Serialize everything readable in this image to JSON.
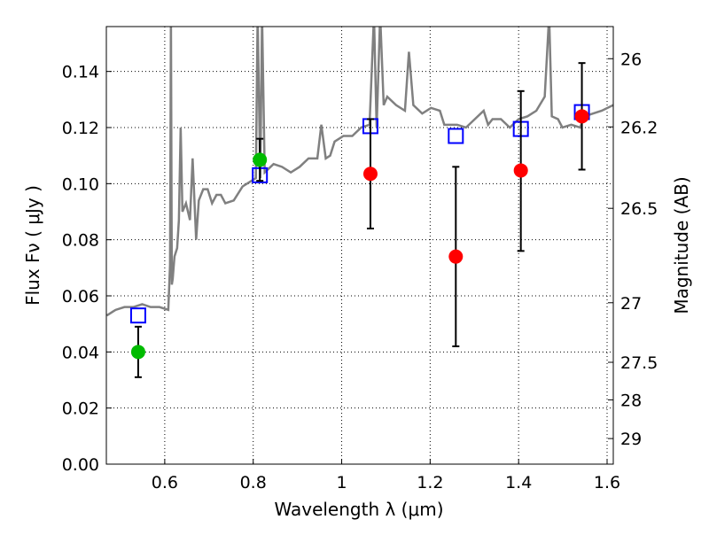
{
  "chart_data": {
    "type": "scatter",
    "xlabel": "Wavelength  λ (μm)",
    "ylabel": "Flux  Fν  ( μJy )",
    "ylabel_right": "Magnitude (AB)",
    "xlim": [
      0.468,
      1.614
    ],
    "ylim": [
      0,
      0.156
    ],
    "grid": true,
    "x_ticks": [
      {
        "v": 0.6,
        "label": "0.6"
      },
      {
        "v": 0.8,
        "label": "0.8"
      },
      {
        "v": 1.0,
        "label": "1"
      },
      {
        "v": 1.2,
        "label": "1.2"
      },
      {
        "v": 1.4,
        "label": "1.4"
      },
      {
        "v": 1.6,
        "label": "1.6"
      }
    ],
    "y_ticks": [
      {
        "v": 0,
        "label": "0.00"
      },
      {
        "v": 0.02,
        "label": "0.02"
      },
      {
        "v": 0.04,
        "label": "0.04"
      },
      {
        "v": 0.06,
        "label": "0.06"
      },
      {
        "v": 0.08,
        "label": "0.08"
      },
      {
        "v": 0.1,
        "label": "0.10"
      },
      {
        "v": 0.12,
        "label": "0.12"
      },
      {
        "v": 0.14,
        "label": "0.14"
      }
    ],
    "right_ticks": [
      {
        "mag": 26,
        "label": "26"
      },
      {
        "mag": 26.2,
        "label": "26.2"
      },
      {
        "mag": 26.5,
        "label": "26.5"
      },
      {
        "mag": 27,
        "label": "27"
      },
      {
        "mag": 27.5,
        "label": "27.5"
      },
      {
        "mag": 28,
        "label": "28"
      },
      {
        "mag": 29,
        "label": "29"
      }
    ],
    "colors": {
      "spectrum": "#808080",
      "model": "#0000ff",
      "green": "#00bb00",
      "red": "#ff0000"
    },
    "spectrum": [
      [
        0.469,
        0.053
      ],
      [
        0.489,
        0.055
      ],
      [
        0.509,
        0.056
      ],
      [
        0.529,
        0.056
      ],
      [
        0.549,
        0.057
      ],
      [
        0.568,
        0.056
      ],
      [
        0.588,
        0.056
      ],
      [
        0.608,
        0.055
      ],
      [
        0.612,
        0.071
      ],
      [
        0.614,
        0.16
      ],
      [
        0.616,
        0.064
      ],
      [
        0.618,
        0.066
      ],
      [
        0.622,
        0.074
      ],
      [
        0.628,
        0.077
      ],
      [
        0.632,
        0.087
      ],
      [
        0.636,
        0.12
      ],
      [
        0.64,
        0.09
      ],
      [
        0.648,
        0.093
      ],
      [
        0.657,
        0.087
      ],
      [
        0.663,
        0.109
      ],
      [
        0.671,
        0.08
      ],
      [
        0.677,
        0.094
      ],
      [
        0.687,
        0.098
      ],
      [
        0.697,
        0.098
      ],
      [
        0.707,
        0.093
      ],
      [
        0.717,
        0.096
      ],
      [
        0.727,
        0.096
      ],
      [
        0.737,
        0.093
      ],
      [
        0.756,
        0.094
      ],
      [
        0.776,
        0.099
      ],
      [
        0.796,
        0.101
      ],
      [
        0.806,
        0.102
      ],
      [
        0.81,
        0.16
      ],
      [
        0.816,
        0.102
      ],
      [
        0.82,
        0.16
      ],
      [
        0.826,
        0.104
      ],
      [
        0.846,
        0.107
      ],
      [
        0.865,
        0.106
      ],
      [
        0.885,
        0.104
      ],
      [
        0.905,
        0.106
      ],
      [
        0.925,
        0.109
      ],
      [
        0.945,
        0.109
      ],
      [
        0.954,
        0.121
      ],
      [
        0.964,
        0.109
      ],
      [
        0.974,
        0.11
      ],
      [
        0.984,
        0.115
      ],
      [
        1.004,
        0.117
      ],
      [
        1.024,
        0.117
      ],
      [
        1.044,
        0.12
      ],
      [
        1.063,
        0.121
      ],
      [
        1.073,
        0.16
      ],
      [
        1.079,
        0.12
      ],
      [
        1.087,
        0.16
      ],
      [
        1.095,
        0.128
      ],
      [
        1.103,
        0.131
      ],
      [
        1.123,
        0.128
      ],
      [
        1.143,
        0.126
      ],
      [
        1.152,
        0.147
      ],
      [
        1.162,
        0.128
      ],
      [
        1.182,
        0.125
      ],
      [
        1.202,
        0.127
      ],
      [
        1.222,
        0.126
      ],
      [
        1.232,
        0.121
      ],
      [
        1.242,
        0.121
      ],
      [
        1.261,
        0.121
      ],
      [
        1.281,
        0.12
      ],
      [
        1.301,
        0.123
      ],
      [
        1.321,
        0.126
      ],
      [
        1.331,
        0.121
      ],
      [
        1.341,
        0.123
      ],
      [
        1.36,
        0.123
      ],
      [
        1.38,
        0.12
      ],
      [
        1.4,
        0.123
      ],
      [
        1.42,
        0.124
      ],
      [
        1.44,
        0.126
      ],
      [
        1.459,
        0.131
      ],
      [
        1.469,
        0.16
      ],
      [
        1.475,
        0.124
      ],
      [
        1.489,
        0.123
      ],
      [
        1.499,
        0.12
      ],
      [
        1.519,
        0.121
      ],
      [
        1.539,
        0.12
      ],
      [
        1.549,
        0.124
      ],
      [
        1.568,
        0.125
      ],
      [
        1.588,
        0.126
      ],
      [
        1.614,
        0.128
      ]
    ],
    "model_points": [
      [
        0.54,
        0.053
      ],
      [
        0.815,
        0.103
      ],
      [
        1.065,
        0.1205
      ],
      [
        1.258,
        0.117
      ],
      [
        1.405,
        0.1195
      ],
      [
        1.543,
        0.1255
      ]
    ],
    "green_points": [
      {
        "x": 0.54,
        "y": 0.04,
        "lo": 0.031,
        "hi": 0.049
      },
      {
        "x": 0.815,
        "y": 0.1085,
        "lo": 0.101,
        "hi": 0.116
      }
    ],
    "red_points": [
      {
        "x": 1.065,
        "y": 0.1035,
        "lo": 0.084,
        "hi": 0.123
      },
      {
        "x": 1.258,
        "y": 0.074,
        "lo": 0.042,
        "hi": 0.106
      },
      {
        "x": 1.405,
        "y": 0.1047,
        "lo": 0.076,
        "hi": 0.133
      },
      {
        "x": 1.543,
        "y": 0.124,
        "lo": 0.105,
        "hi": 0.143
      }
    ]
  }
}
